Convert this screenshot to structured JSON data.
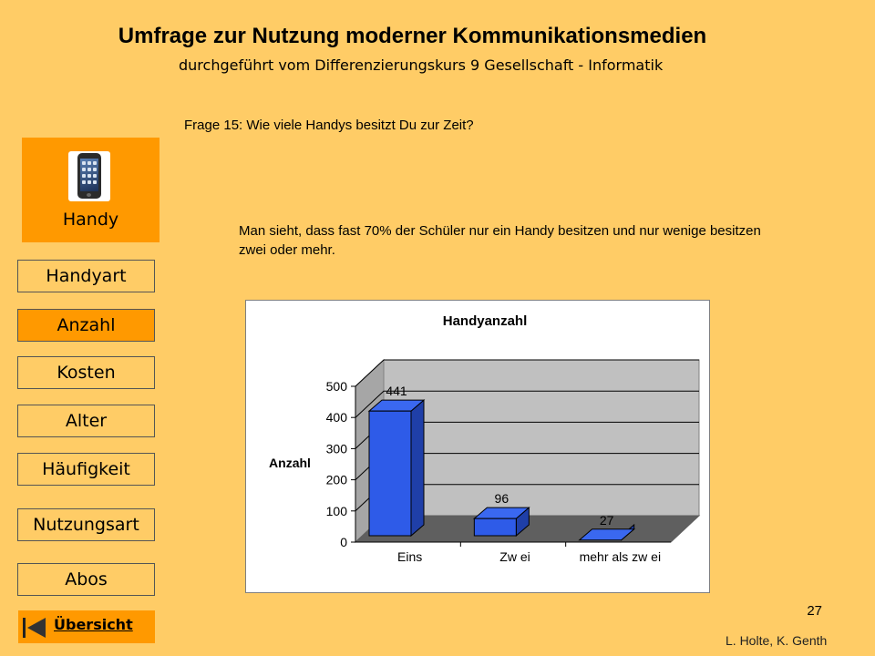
{
  "header": {
    "title": "Umfrage zur Nutzung moderner Kommunikationsmedien",
    "subtitle": "durchgeführt vom Differenzierungskurs 9 Gesellschaft - Informatik"
  },
  "question": "Frage 15: Wie viele Handys besitzt Du zur Zeit?",
  "description": "Man sieht, dass fast 70% der Schüler nur ein Handy besitzen und nur wenige besitzen zwei oder mehr.",
  "sidebar": {
    "category_label": "Handy",
    "category_icon": "mobile-phone-icon",
    "items": [
      {
        "label": "Handyart",
        "active": false
      },
      {
        "label": "Anzahl",
        "active": true
      },
      {
        "label": "Kosten",
        "active": false
      },
      {
        "label": "Alter",
        "active": false
      },
      {
        "label": "Häufigkeit",
        "active": false
      },
      {
        "label": "Nutzungsart",
        "active": false
      },
      {
        "label": "Abos",
        "active": false
      }
    ],
    "overview_label": "Übersicht",
    "overview_icon": "back-arrow-icon"
  },
  "footer": {
    "page_number": "27",
    "authors": "L. Holte, K. Genth"
  },
  "colors": {
    "background": "#FFCC66",
    "highlight": "#FF9900",
    "bar": "#2E5BE8"
  },
  "chart_data": {
    "type": "bar",
    "title": "Handyanzahl",
    "ylabel": "Anzahl",
    "xlabel": "",
    "categories": [
      "Eins",
      "Zw ei",
      "mehr als zw ei"
    ],
    "values": [
      441,
      96,
      27
    ],
    "data_labels": [
      "441",
      "96",
      "27"
    ],
    "ylim": [
      0,
      500
    ],
    "yticks": [
      "0",
      "100",
      "200",
      "300",
      "400",
      "500"
    ],
    "grid": true,
    "style": "3d"
  }
}
